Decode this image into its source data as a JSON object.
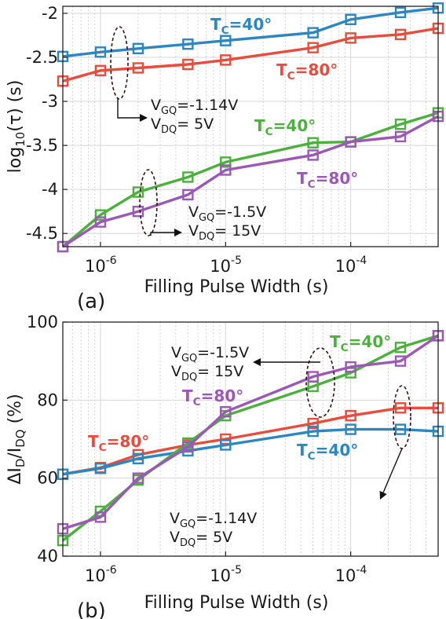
{
  "chart_data": [
    {
      "type": "line",
      "panel_label": "(a)",
      "xlabel": "Filling Pulse Width (s)",
      "ylabel": "log10(τ) (s)",
      "ylabel_parts": {
        "main": "log",
        "sub": "10",
        "rest": "(τ) (s)"
      },
      "xscale": "log",
      "xlim": [
        5e-07,
        0.0005
      ],
      "ylim": [
        -4.65,
        -1.92
      ],
      "x_ticks": [
        {
          "value": 1e-06,
          "base": "10",
          "exp": "-6"
        },
        {
          "value": 1e-05,
          "base": "10",
          "exp": "-5"
        },
        {
          "value": 0.0001,
          "base": "10",
          "exp": "-4"
        }
      ],
      "y_ticks": [
        {
          "value": -2,
          "label": "-2"
        },
        {
          "value": -2.5,
          "label": "-2.5"
        },
        {
          "value": -3,
          "label": "-3"
        },
        {
          "value": -3.5,
          "label": "-3.5"
        },
        {
          "value": -4,
          "label": "-4"
        },
        {
          "value": -4.5,
          "label": "-4.5"
        }
      ],
      "grid": true,
      "x": [
        5e-07,
        1e-06,
        2e-06,
        5e-06,
        1e-05,
        5e-05,
        0.0001,
        0.00025,
        0.0005
      ],
      "series": [
        {
          "id": "a-blue",
          "color": "#2e86c1",
          "values": [
            -2.49,
            -2.44,
            -2.4,
            -2.35,
            -2.31,
            -2.22,
            -2.07,
            -1.99,
            -1.94
          ]
        },
        {
          "id": "a-red",
          "color": "#e74c3c",
          "values": [
            -2.77,
            -2.65,
            -2.62,
            -2.58,
            -2.53,
            -2.39,
            -2.28,
            -2.24,
            -2.17
          ]
        },
        {
          "id": "a-green",
          "color": "#4caf3e",
          "values": [
            -4.65,
            -4.29,
            -4.03,
            -3.86,
            -3.69,
            -3.47,
            -3.46,
            -3.26,
            -3.13
          ]
        },
        {
          "id": "a-purple",
          "color": "#9b59b6",
          "values": [
            -4.65,
            -4.37,
            -4.25,
            -4.06,
            -3.78,
            -3.61,
            -3.46,
            -3.4,
            -3.17
          ]
        }
      ],
      "annotations": {
        "tc_labels": [
          {
            "id": "a-tc-blue",
            "main": "T",
            "sub": "C",
            "rest": "=40°",
            "color": "#2e86c1"
          },
          {
            "id": "a-tc-red",
            "main": "T",
            "sub": "C",
            "rest": "=80°",
            "color": "#e74c3c"
          },
          {
            "id": "a-tc-green",
            "main": "T",
            "sub": "C",
            "rest": "=40°",
            "color": "#4caf3e"
          },
          {
            "id": "a-tc-purple",
            "main": "T",
            "sub": "C",
            "rest": "=80°",
            "color": "#9b59b6"
          }
        ],
        "bias_labels": [
          {
            "id": "a-bias-1",
            "line1": {
              "main": "V",
              "sub": "GQ",
              "rest": "=-1.14V"
            },
            "line2": {
              "main": "V",
              "sub": "DQ",
              "rest": "= 5V"
            }
          },
          {
            "id": "a-bias-2",
            "line1": {
              "main": "V",
              "sub": "GQ",
              "rest": "=-1.5V"
            },
            "line2": {
              "main": "V",
              "sub": "DQ",
              "rest": "= 15V"
            }
          }
        ]
      }
    },
    {
      "type": "line",
      "panel_label": "(b)",
      "xlabel": "Filling Pulse Width (s)",
      "ylabel": "ΔI_D/I_DQ (%)",
      "ylabel_parts": {
        "p1": "ΔI",
        "s1": "D",
        "p2": "/I",
        "s2": "DQ",
        "p3": " (%)"
      },
      "xscale": "log",
      "xlim": [
        5e-07,
        0.0005
      ],
      "ylim": [
        40,
        100
      ],
      "x_ticks": [
        {
          "value": 1e-06,
          "base": "10",
          "exp": "-6"
        },
        {
          "value": 1e-05,
          "base": "10",
          "exp": "-5"
        },
        {
          "value": 0.0001,
          "base": "10",
          "exp": "-4"
        }
      ],
      "y_ticks": [
        {
          "value": 40,
          "label": "40"
        },
        {
          "value": 60,
          "label": "60"
        },
        {
          "value": 80,
          "label": "80"
        },
        {
          "value": 100,
          "label": "100"
        }
      ],
      "grid": true,
      "x": [
        5e-07,
        1e-06,
        2e-06,
        5e-06,
        1e-05,
        5e-05,
        0.0001,
        0.00025,
        0.0005
      ],
      "series": [
        {
          "id": "b-red",
          "color": "#e74c3c",
          "values": [
            61,
            62.7,
            66,
            68.5,
            70,
            74,
            76,
            78,
            78
          ]
        },
        {
          "id": "b-blue",
          "color": "#2e86c1",
          "values": [
            61,
            62.5,
            65,
            67,
            68.5,
            72,
            72.5,
            72.5,
            72
          ]
        },
        {
          "id": "b-green",
          "color": "#4caf3e",
          "values": [
            44,
            51.5,
            59.5,
            69,
            76,
            83.5,
            87,
            93.5,
            96.5
          ]
        },
        {
          "id": "b-purple",
          "color": "#9b59b6",
          "values": [
            47,
            50,
            60,
            68,
            77,
            86,
            88.5,
            90,
            96.5
          ]
        }
      ],
      "annotations": {
        "tc_labels": [
          {
            "id": "b-tc-green",
            "main": "T",
            "sub": "C",
            "rest": "=40°",
            "color": "#4caf3e"
          },
          {
            "id": "b-tc-purple",
            "main": "T",
            "sub": "C",
            "rest": "=80°",
            "color": "#9b59b6"
          },
          {
            "id": "b-tc-red",
            "main": "T",
            "sub": "C",
            "rest": "=80°",
            "color": "#e74c3c"
          },
          {
            "id": "b-tc-blue",
            "main": "T",
            "sub": "C",
            "rest": "=40°",
            "color": "#2e86c1"
          }
        ],
        "bias_labels": [
          {
            "id": "b-bias-1",
            "line1": {
              "main": "V",
              "sub": "GQ",
              "rest": "=-1.5V"
            },
            "line2": {
              "main": "V",
              "sub": "DQ",
              "rest": "= 15V"
            }
          },
          {
            "id": "b-bias-2",
            "line1": {
              "main": "V",
              "sub": "GQ",
              "rest": "=-1.14V"
            },
            "line2": {
              "main": "V",
              "sub": "DQ",
              "rest": "= 5V"
            }
          }
        ]
      }
    }
  ]
}
